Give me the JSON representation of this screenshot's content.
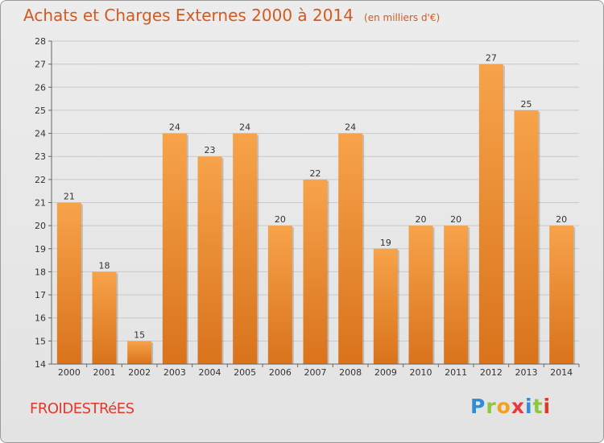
{
  "header": {
    "title": "Achats et Charges Externes 2000 à 2014",
    "unit": "(en milliers d'€)"
  },
  "footer": {
    "commune": "FROIDESTRéES",
    "logo_letters": [
      "P",
      "r",
      "o",
      "x",
      "i",
      "t",
      "i"
    ],
    "logo_icon": "proxiti-logo-icon"
  },
  "colors": {
    "bar_light": "#f7a34a",
    "bar_dark": "#d9731c",
    "title": "#d35a1f",
    "commune": "#e0392c",
    "grid": "#c9c9c9"
  },
  "chart_data": {
    "type": "bar",
    "title": "Achats et Charges Externes 2000 à 2014",
    "subtitle": "(en milliers d'€)",
    "xlabel": "",
    "ylabel": "",
    "categories": [
      "2000",
      "2001",
      "2002",
      "2003",
      "2004",
      "2005",
      "2006",
      "2007",
      "2008",
      "2009",
      "2010",
      "2011",
      "2012",
      "2013",
      "2014"
    ],
    "values": [
      21,
      18,
      15,
      24,
      23,
      24,
      20,
      22,
      24,
      19,
      20,
      20,
      27,
      25,
      20
    ],
    "ylim": [
      14,
      28
    ],
    "yticks": [
      14,
      15,
      16,
      17,
      18,
      19,
      20,
      21,
      22,
      23,
      24,
      25,
      26,
      27,
      28
    ],
    "grid": true,
    "data_labels": true
  }
}
